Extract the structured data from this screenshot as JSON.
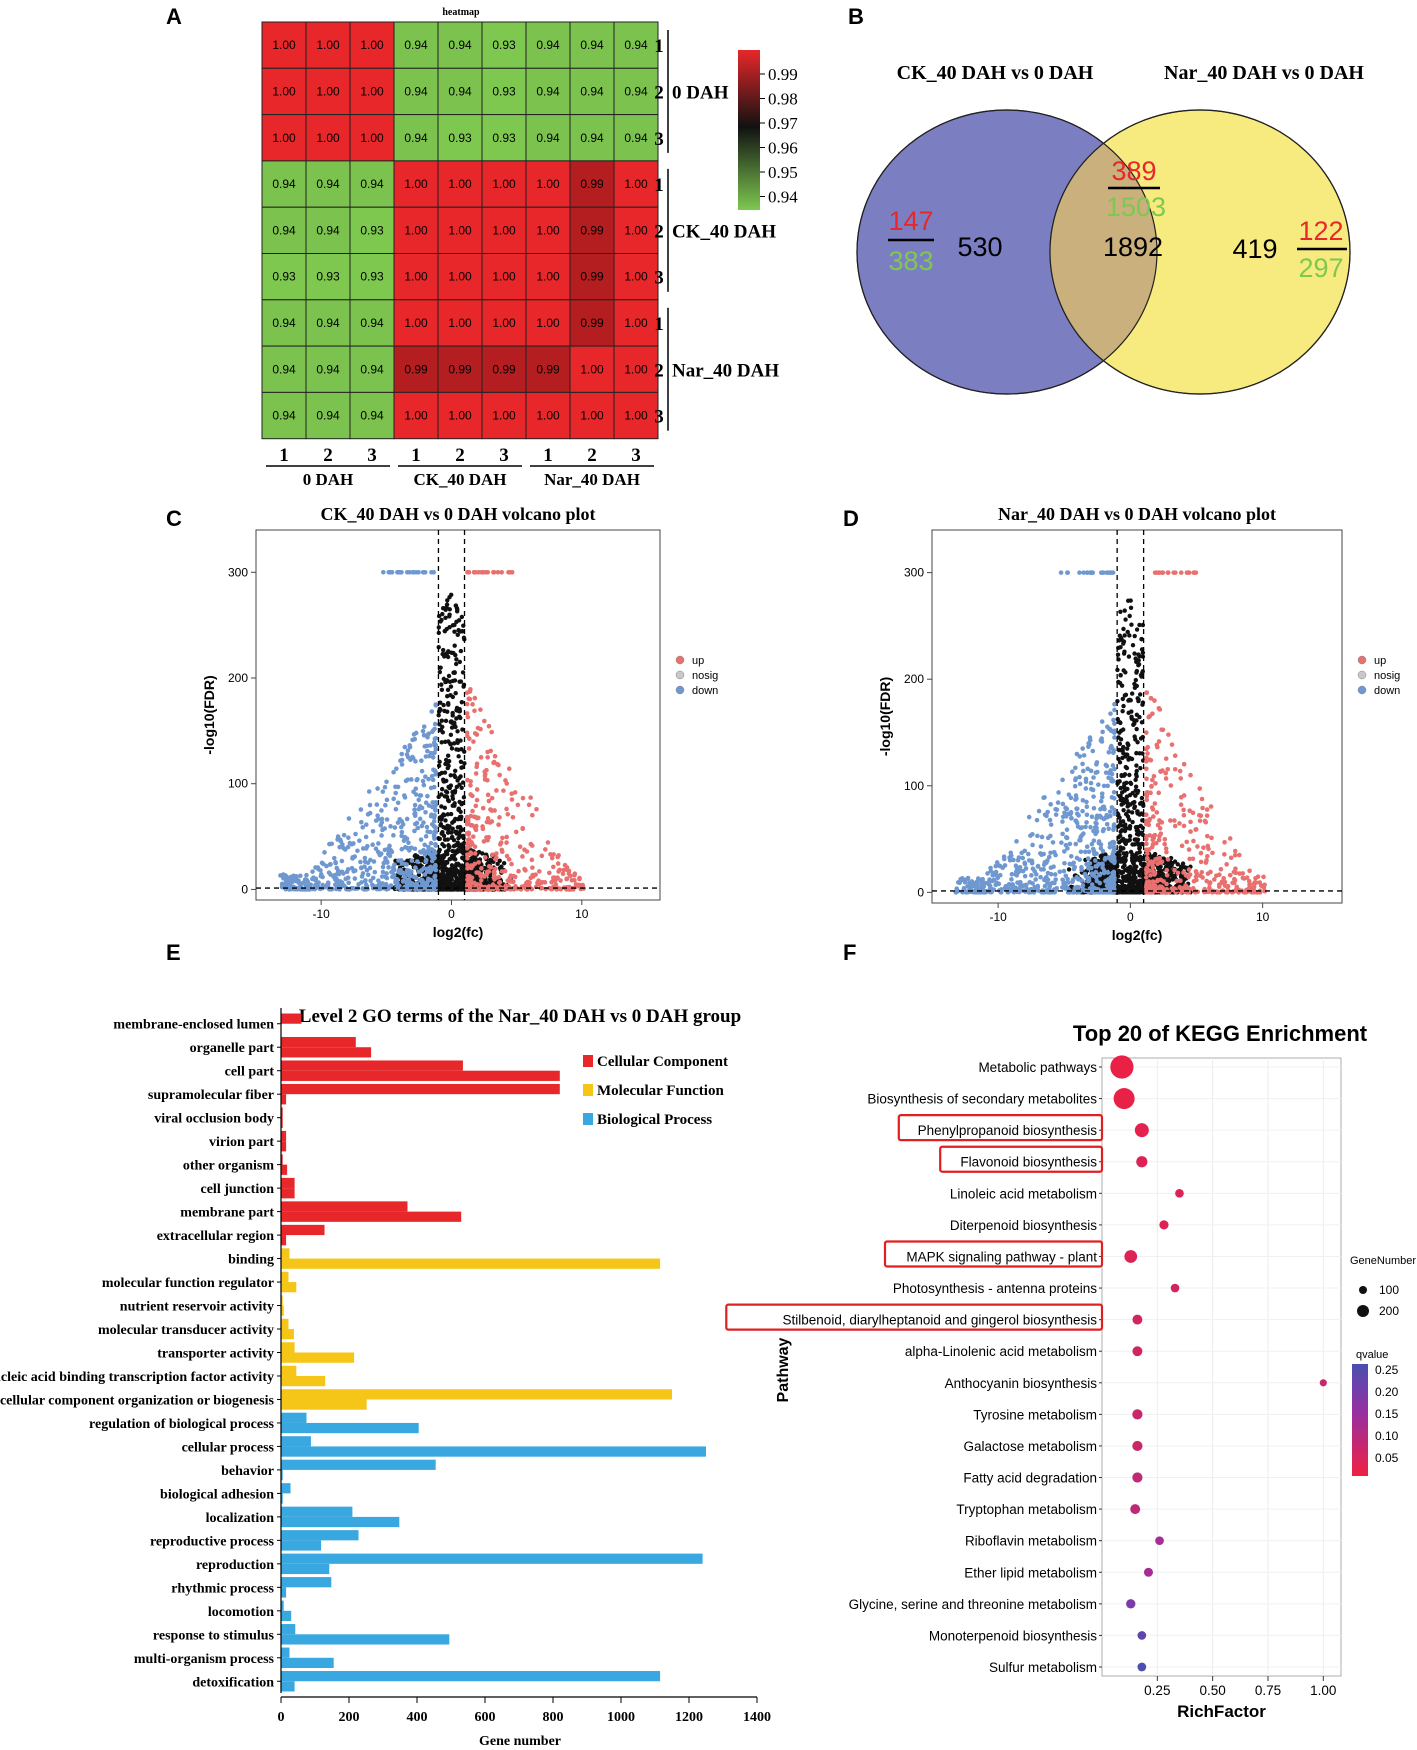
{
  "panels": {
    "A": "A",
    "B": "B",
    "C": "C",
    "D": "D",
    "E": "E",
    "F": "F"
  },
  "chart_data": [
    {
      "type": "heatmap",
      "panel": "A",
      "title": "heatmap",
      "row_labels": [
        "1",
        "2",
        "3",
        "1",
        "2",
        "3",
        "1",
        "2",
        "3"
      ],
      "col_labels": [
        "1",
        "2",
        "3",
        "1",
        "2",
        "3",
        "1",
        "2",
        "3"
      ],
      "groups": [
        "0 DAH",
        "CK_40 DAH",
        "Nar_40 DAH"
      ],
      "values": [
        [
          "1.00",
          "1.00",
          "1.00",
          "0.94",
          "0.94",
          "0.93",
          "0.94",
          "0.94",
          "0.94"
        ],
        [
          "1.00",
          "1.00",
          "1.00",
          "0.94",
          "0.94",
          "0.93",
          "0.94",
          "0.94",
          "0.94"
        ],
        [
          "1.00",
          "1.00",
          "1.00",
          "0.94",
          "0.93",
          "0.93",
          "0.94",
          "0.94",
          "0.94"
        ],
        [
          "0.94",
          "0.94",
          "0.94",
          "1.00",
          "1.00",
          "1.00",
          "1.00",
          "0.99",
          "1.00"
        ],
        [
          "0.94",
          "0.94",
          "0.93",
          "1.00",
          "1.00",
          "1.00",
          "1.00",
          "0.99",
          "1.00"
        ],
        [
          "0.93",
          "0.93",
          "0.93",
          "1.00",
          "1.00",
          "1.00",
          "1.00",
          "0.99",
          "1.00"
        ],
        [
          "0.94",
          "0.94",
          "0.94",
          "1.00",
          "1.00",
          "1.00",
          "1.00",
          "0.99",
          "1.00"
        ],
        [
          "0.94",
          "0.94",
          "0.94",
          "0.99",
          "0.99",
          "0.99",
          "0.99",
          "1.00",
          "1.00"
        ],
        [
          "0.94",
          "0.94",
          "0.94",
          "1.00",
          "1.00",
          "1.00",
          "1.00",
          "1.00",
          "1.00"
        ]
      ],
      "legend_ticks": [
        "0.99",
        "0.98",
        "0.97",
        "0.96",
        "0.95",
        "0.94"
      ],
      "colors": {
        "high": "#e8272a",
        "mid": "#111111",
        "low": "#7ec850"
      }
    },
    {
      "type": "venn",
      "panel": "B",
      "sets": [
        "CK_40 DAH vs 0 DAH",
        "Nar_40 DAH vs 0 DAH"
      ],
      "left_only": {
        "up": "147",
        "down": "383",
        "total": "530"
      },
      "overlap": {
        "up": "389",
        "down": "1503",
        "total": "1892"
      },
      "right_only": {
        "up": "122",
        "down": "297",
        "total": "419"
      },
      "colors": {
        "left": "#7b7fc2",
        "right": "#f7eb7f",
        "overlap": "#c9b07c",
        "up": "#e8272a",
        "down": "#7ec850"
      }
    },
    {
      "type": "scatter",
      "panel": "C",
      "title": "CK_40 DAH vs 0 DAH volcano plot",
      "xlabel": "log2(fc)",
      "ylabel": "-log10(FDR)",
      "xlim": [
        -15,
        16
      ],
      "ylim": [
        -10,
        340
      ],
      "xticks": [
        "-10",
        "0",
        "10"
      ],
      "yticks": [
        "0",
        "100",
        "200",
        "300"
      ],
      "thresholds": {
        "x": [
          -1,
          1
        ],
        "y": 1.3
      },
      "legend": [
        "up",
        "nosig",
        "down"
      ],
      "series_colors": {
        "up": "#e8706e",
        "nosig": "#c8c8c8",
        "down": "#7098d0"
      }
    },
    {
      "type": "scatter",
      "panel": "D",
      "title": "Nar_40 DAH vs 0 DAH volcano plot",
      "xlabel": "log2(fc)",
      "ylabel": "-log10(FDR)",
      "xlim": [
        -15,
        16
      ],
      "ylim": [
        -10,
        340
      ],
      "xticks": [
        "-10",
        "0",
        "10"
      ],
      "yticks": [
        "0",
        "100",
        "200",
        "300"
      ],
      "thresholds": {
        "x": [
          -1,
          1
        ],
        "y": 1.3
      },
      "legend": [
        "up",
        "nosig",
        "down"
      ],
      "series_colors": {
        "up": "#e8706e",
        "nosig": "#c8c8c8",
        "down": "#7098d0"
      }
    },
    {
      "type": "bar",
      "panel": "E",
      "orientation": "horizontal",
      "title": "Level 2 GO terms of the Nar_40 DAH vs 0 DAH group",
      "xlabel": "Gene number",
      "xlim": [
        0,
        1400
      ],
      "xticks": [
        "0",
        "200",
        "400",
        "600",
        "800",
        "1000",
        "1200",
        "1400"
      ],
      "legend": [
        {
          "name": "Cellular Component",
          "color": "#e8272a"
        },
        {
          "name": "Molecular Function",
          "color": "#f5c518"
        },
        {
          "name": "Biological Process",
          "color": "#3aa8e0"
        }
      ],
      "terms": [
        {
          "label": "membrane-enclosed lumen",
          "cat": 0,
          "values": [
            60,
            0
          ]
        },
        {
          "label": "organelle part",
          "cat": 0,
          "values": [
            220,
            265
          ]
        },
        {
          "label": "cell part",
          "cat": 0,
          "values": [
            535,
            820
          ]
        },
        {
          "label": "supramolecular fiber",
          "cat": 0,
          "values": [
            820,
            15
          ]
        },
        {
          "label": "viral occlusion body",
          "cat": 0,
          "values": [
            5,
            5
          ]
        },
        {
          "label": "virion part",
          "cat": 0,
          "values": [
            15,
            15
          ]
        },
        {
          "label": "other organism",
          "cat": 0,
          "values": [
            5,
            18
          ]
        },
        {
          "label": "cell junction",
          "cat": 0,
          "values": [
            40,
            40
          ]
        },
        {
          "label": "membrane part",
          "cat": 0,
          "values": [
            372,
            530
          ]
        },
        {
          "label": "extracellular region",
          "cat": 0,
          "values": [
            128,
            15
          ]
        },
        {
          "label": "binding",
          "cat": 1,
          "values": [
            25,
            1115
          ]
        },
        {
          "label": "molecular function regulator",
          "cat": 1,
          "values": [
            22,
            45
          ]
        },
        {
          "label": "nutrient reservoir activity",
          "cat": 1,
          "values": [
            5,
            8
          ]
        },
        {
          "label": "molecular transducer activity",
          "cat": 1,
          "values": [
            22,
            38
          ]
        },
        {
          "label": "transporter activity",
          "cat": 1,
          "values": [
            40,
            215
          ]
        },
        {
          "label": "nucleic acid binding transcription factor activity",
          "cat": 1,
          "values": [
            45,
            130
          ]
        },
        {
          "label": "cellular component organization or biogenesis",
          "cat": 1,
          "values": [
            1150,
            252
          ]
        },
        {
          "label": "regulation of biological process",
          "cat": 2,
          "values": [
            75,
            405
          ]
        },
        {
          "label": "cellular process",
          "cat": 2,
          "values": [
            88,
            1250
          ]
        },
        {
          "label": "behavior",
          "cat": 2,
          "values": [
            455,
            5
          ]
        },
        {
          "label": "biological adhesion",
          "cat": 2,
          "values": [
            28,
            5
          ]
        },
        {
          "label": "localization",
          "cat": 2,
          "values": [
            210,
            348
          ]
        },
        {
          "label": "reproductive process",
          "cat": 2,
          "values": [
            228,
            118
          ]
        },
        {
          "label": "reproduction",
          "cat": 2,
          "values": [
            1240,
            142
          ]
        },
        {
          "label": "rhythmic process",
          "cat": 2,
          "values": [
            148,
            15
          ]
        },
        {
          "label": "locomotion",
          "cat": 2,
          "values": [
            8,
            30
          ]
        },
        {
          "label": "response to stimulus",
          "cat": 2,
          "values": [
            42,
            495
          ]
        },
        {
          "label": "multi-organism process",
          "cat": 2,
          "values": [
            25,
            155
          ]
        },
        {
          "label": "detoxification",
          "cat": 2,
          "values": [
            1115,
            40
          ]
        }
      ]
    },
    {
      "type": "scatter",
      "panel": "F",
      "title": "Top 20 of KEGG Enrichment",
      "xlabel": "RichFactor",
      "ylabel": "Pathway",
      "xlim": [
        0,
        1.08
      ],
      "xticks": [
        "0.25",
        "0.50",
        "0.75",
        "1.00"
      ],
      "size_legend_title": "GeneNumber",
      "size_legend": [
        "100",
        "200"
      ],
      "color_legend_title": "qvalue",
      "color_legend": [
        "0.25",
        "0.20",
        "0.15",
        "0.10",
        "0.05"
      ],
      "points": [
        {
          "pathway": "Metabolic pathways",
          "rich": 0.09,
          "genes": 230,
          "q": 0.01,
          "highlight": false
        },
        {
          "pathway": "Biosynthesis of secondary metabolites",
          "rich": 0.1,
          "genes": 180,
          "q": 0.01,
          "highlight": false
        },
        {
          "pathway": "Phenylpropanoid biosynthesis",
          "rich": 0.18,
          "genes": 60,
          "q": 0.02,
          "highlight": true
        },
        {
          "pathway": "Flavonoid biosynthesis",
          "rich": 0.18,
          "genes": 30,
          "q": 0.03,
          "highlight": true
        },
        {
          "pathway": "Linoleic acid metabolism",
          "rich": 0.35,
          "genes": 12,
          "q": 0.03,
          "highlight": false
        },
        {
          "pathway": "Diterpenoid biosynthesis",
          "rich": 0.28,
          "genes": 15,
          "q": 0.03,
          "highlight": false
        },
        {
          "pathway": "MAPK signaling pathway - plant",
          "rich": 0.13,
          "genes": 45,
          "q": 0.03,
          "highlight": true
        },
        {
          "pathway": "Photosynthesis - antenna proteins",
          "rich": 0.33,
          "genes": 12,
          "q": 0.05,
          "highlight": false
        },
        {
          "pathway": "Stilbenoid, diarylheptanoid and gingerol biosynthesis",
          "rich": 0.16,
          "genes": 20,
          "q": 0.05,
          "highlight": true
        },
        {
          "pathway": "alpha-Linolenic acid metabolism",
          "rich": 0.16,
          "genes": 20,
          "q": 0.05,
          "highlight": false
        },
        {
          "pathway": "Anthocyanin biosynthesis",
          "rich": 1.0,
          "genes": 5,
          "q": 0.06,
          "highlight": false
        },
        {
          "pathway": "Tyrosine metabolism",
          "rich": 0.16,
          "genes": 22,
          "q": 0.06,
          "highlight": false
        },
        {
          "pathway": "Galactose metabolism",
          "rich": 0.16,
          "genes": 22,
          "q": 0.06,
          "highlight": false
        },
        {
          "pathway": "Fatty acid degradation",
          "rich": 0.16,
          "genes": 22,
          "q": 0.08,
          "highlight": false
        },
        {
          "pathway": "Tryptophan metabolism",
          "rich": 0.15,
          "genes": 20,
          "q": 0.08,
          "highlight": false
        },
        {
          "pathway": "Riboflavin metabolism",
          "rich": 0.26,
          "genes": 12,
          "q": 0.12,
          "highlight": false
        },
        {
          "pathway": "Ether lipid metabolism",
          "rich": 0.21,
          "genes": 14,
          "q": 0.12,
          "highlight": false
        },
        {
          "pathway": "Glycine, serine and threonine metabolism",
          "rich": 0.13,
          "genes": 16,
          "q": 0.18,
          "highlight": false
        },
        {
          "pathway": "Monoterpenoid biosynthesis",
          "rich": 0.18,
          "genes": 12,
          "q": 0.22,
          "highlight": false
        },
        {
          "pathway": "Sulfur metabolism",
          "rich": 0.18,
          "genes": 12,
          "q": 0.25,
          "highlight": false
        }
      ]
    }
  ]
}
